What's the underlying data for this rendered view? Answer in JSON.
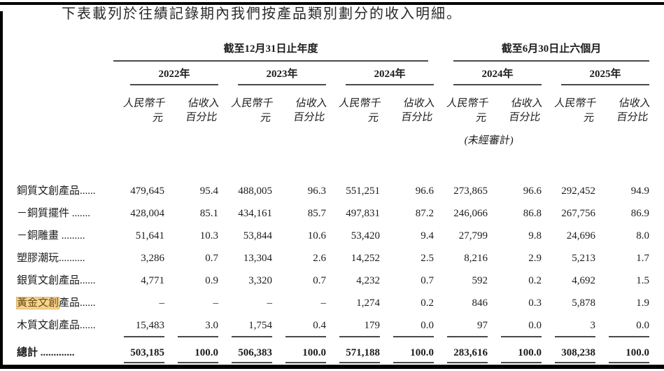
{
  "page": {
    "title": "下表載列於往績記錄期內我們按產品類別劃分的收入明細。"
  },
  "table": {
    "groups": [
      {
        "label": "截至12月31日止年度"
      },
      {
        "label": "截至6月30日止六個月"
      }
    ],
    "years": [
      "2022年",
      "2023年",
      "2024年",
      "2024年",
      "2025年"
    ],
    "subheaders": {
      "amount": "人民幣千元",
      "pct_line1": "佔收入",
      "pct_line2": "百分比",
      "unaudited": "(未經審計)"
    },
    "rows": [
      {
        "label": "銅質文創產品......",
        "values": [
          "479,645",
          "95.4",
          "488,005",
          "96.3",
          "551,251",
          "96.6",
          "273,865",
          "96.6",
          "292,452",
          "94.9"
        ]
      },
      {
        "label": "－銅質擺件 .......",
        "values": [
          "428,004",
          "85.1",
          "434,161",
          "85.7",
          "497,831",
          "87.2",
          "246,066",
          "86.8",
          "267,756",
          "86.9"
        ]
      },
      {
        "label": "－銅雕畫 .........",
        "values": [
          "51,641",
          "10.3",
          "53,844",
          "10.6",
          "53,420",
          "9.4",
          "27,799",
          "9.8",
          "24,696",
          "8.0"
        ]
      },
      {
        "label": "塑膠潮玩..........",
        "values": [
          "3,286",
          "0.7",
          "13,304",
          "2.6",
          "14,252",
          "2.5",
          "8,216",
          "2.9",
          "5,213",
          "1.7"
        ]
      },
      {
        "label": "銀質文創產品......",
        "values": [
          "4,771",
          "0.9",
          "3,320",
          "0.7",
          "4,232",
          "0.7",
          "592",
          "0.2",
          "4,692",
          "1.5"
        ]
      },
      {
        "label_highlight": "黃金文創",
        "label": "產品......",
        "values": [
          "–",
          "–",
          "–",
          "–",
          "1,274",
          "0.2",
          "846",
          "0.3",
          "5,878",
          "1.9"
        ]
      },
      {
        "label": "木質文創產品......",
        "values": [
          "15,483",
          "3.0",
          "1,754",
          "0.4",
          "179",
          "0.0",
          "97",
          "0.0",
          "3",
          "0.0"
        ]
      }
    ],
    "total": {
      "label": "總計 .............",
      "values": [
        "503,185",
        "100.0",
        "506,383",
        "100.0",
        "571,188",
        "100.0",
        "283,616",
        "100.0",
        "308,238",
        "100.0"
      ]
    },
    "colors": {
      "highlight_bg": "#F5D48D",
      "highlight_text": "#6a4b17",
      "rule": "#4a4a4a",
      "frame": "#000000"
    }
  }
}
